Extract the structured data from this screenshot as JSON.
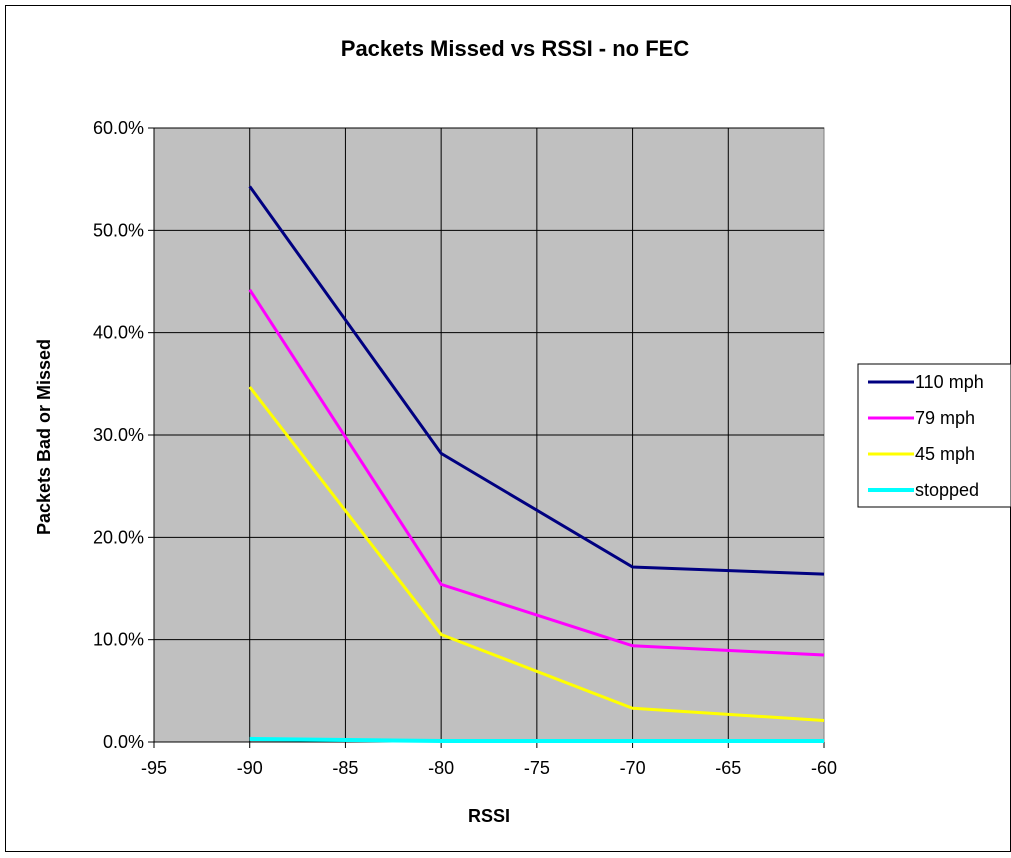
{
  "chart_data": {
    "type": "line",
    "title": "Packets Missed vs RSSI - no FEC",
    "xlabel": "RSSI",
    "ylabel": "Packets Bad or Missed",
    "xlim": [
      -95,
      -60
    ],
    "ylim": [
      0,
      0.6
    ],
    "x_ticks": [
      "-95",
      "-90",
      "-85",
      "-80",
      "-75",
      "-70",
      "-65",
      "-60"
    ],
    "y_ticks": [
      "0.0%",
      "10.0%",
      "20.0%",
      "30.0%",
      "40.0%",
      "50.0%",
      "60.0%"
    ],
    "x_tick_values": [
      -95,
      -90,
      -85,
      -80,
      -75,
      -70,
      -65,
      -60
    ],
    "y_tick_values": [
      0,
      0.1,
      0.2,
      0.3,
      0.4,
      0.5,
      0.6
    ],
    "x": [
      -90,
      -80,
      -70,
      -60
    ],
    "series": [
      {
        "name": "110 mph",
        "values": [
          0.543,
          0.282,
          0.171,
          0.164
        ],
        "color": "#000080"
      },
      {
        "name": "79 mph",
        "values": [
          0.442,
          0.154,
          0.094,
          0.085
        ],
        "color": "#ff00ff"
      },
      {
        "name": "45 mph",
        "values": [
          0.347,
          0.105,
          0.033,
          0.021
        ],
        "color": "#ffff00"
      },
      {
        "name": "stopped",
        "values": [
          0.003,
          0.001,
          0.001,
          0.001
        ],
        "color": "#00ffff"
      }
    ],
    "grid": true,
    "plot_background": "#c0c0c0",
    "legend_position": "right"
  }
}
